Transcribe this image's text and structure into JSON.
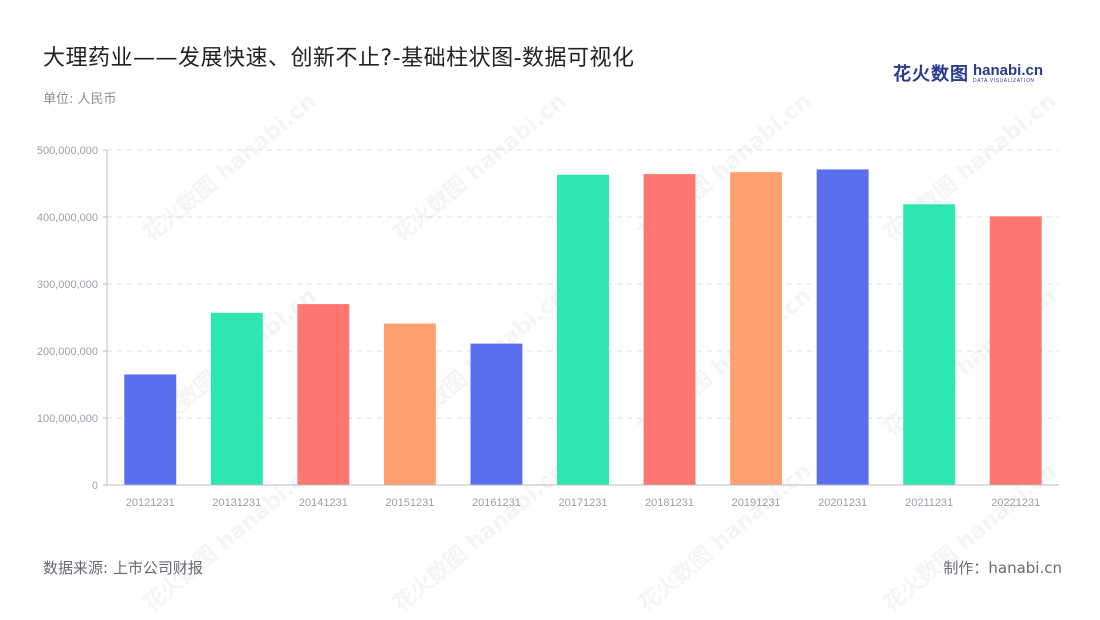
{
  "header": {
    "title": "大理药业——发展快速、创新不止?-基础柱状图-数据可视化",
    "unit": "单位: 人民币"
  },
  "brand": {
    "cn": "花火数图",
    "en": "hanabi.cn",
    "sub": "DATA VISUALIZATION"
  },
  "footer": {
    "source": "数据来源: 上市公司财报",
    "maker": "制作：hanabi.cn"
  },
  "watermark_text": "花火数图 hanabi.cn",
  "chart_data": {
    "type": "bar",
    "categories": [
      "20121231",
      "20131231",
      "20141231",
      "20151231",
      "20161231",
      "20171231",
      "20181231",
      "20191231",
      "20201231",
      "20211231",
      "20221231"
    ],
    "values": [
      165000000,
      257000000,
      270000000,
      241000000,
      211000000,
      463000000,
      464000000,
      467000000,
      471000000,
      419000000,
      401000000
    ],
    "bar_colors": [
      "#5a6fee",
      "#2de6b0",
      "#ff7670",
      "#ffa06e",
      "#5a6fee",
      "#2de6b0",
      "#ff7670",
      "#ffa06e",
      "#5a6fee",
      "#2de6b0",
      "#ff7670"
    ],
    "yticks": [
      0,
      100000000,
      200000000,
      300000000,
      400000000,
      500000000
    ],
    "ytick_labels": [
      "0",
      "100,000,000",
      "200,000,000",
      "300,000,000",
      "400,000,000",
      "500,000,000"
    ],
    "ylim": [
      0,
      500000000
    ],
    "grid": true,
    "legend": "none"
  }
}
